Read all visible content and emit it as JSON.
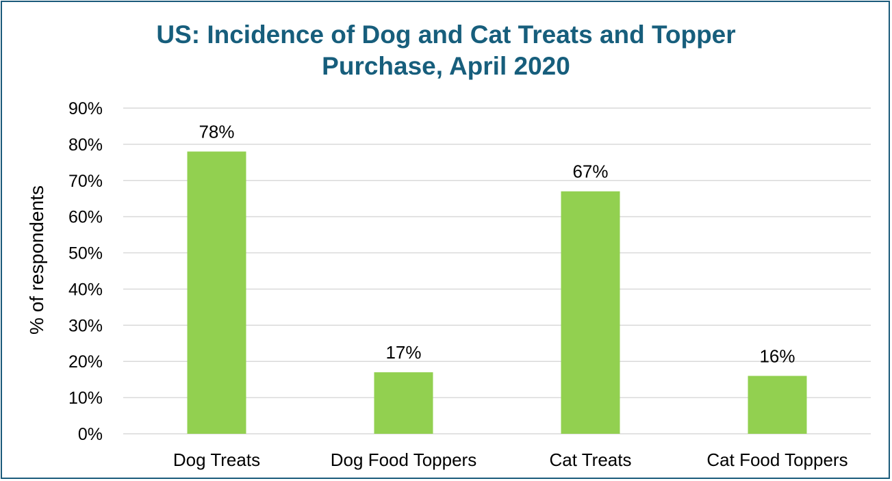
{
  "chart_data": {
    "type": "bar",
    "title_lines": [
      "US: Incidence of Dog and Cat Treats and Topper",
      "Purchase, April 2020"
    ],
    "xlabel": "",
    "ylabel": "% of respondents",
    "categories": [
      "Dog Treats",
      "Dog Food Toppers",
      "Cat Treats",
      "Cat Food Toppers"
    ],
    "values": [
      78,
      17,
      67,
      16
    ],
    "data_labels": [
      "78%",
      "17%",
      "67%",
      "16%"
    ],
    "ylim": [
      0,
      90
    ],
    "yticks": [
      0,
      10,
      20,
      30,
      40,
      50,
      60,
      70,
      80,
      90
    ],
    "ytick_labels": [
      "0%",
      "10%",
      "20%",
      "30%",
      "40%",
      "50%",
      "60%",
      "70%",
      "80%",
      "90%"
    ],
    "grid": true,
    "legend": "none",
    "colors": {
      "bar": "#92d050",
      "title": "#175e7c",
      "frame": "#1a5a7a",
      "grid": "#d9d9d9"
    }
  }
}
